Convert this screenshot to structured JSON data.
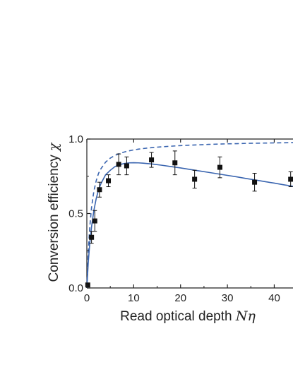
{
  "chart_data": {
    "type": "scatter",
    "xlabel": "Read optical depth ",
    "xlabel_var": "Nη",
    "ylabel": "Conversion efficiency ",
    "ylabel_var": "χ",
    "xlim": [
      0,
      44
    ],
    "ylim": [
      0,
      1.0
    ],
    "x_ticks": [
      0,
      10,
      20,
      30,
      40
    ],
    "x_tick_labels": [
      "0",
      "10",
      "20",
      "30",
      "40"
    ],
    "y_ticks": [
      0,
      0.5,
      1.0
    ],
    "y_tick_labels": [
      "0.0",
      "0.5",
      "1.0"
    ],
    "grid": false,
    "legend": "none",
    "colors": {
      "curve": "#3a65b0",
      "points": "#111111",
      "axis": "#222222"
    },
    "series": [
      {
        "kind": "points-with-error-bars",
        "x": [
          0.2,
          1.0,
          1.7,
          2.7,
          4.6,
          6.8,
          8.5,
          13.8,
          18.8,
          23.0,
          28.4,
          35.8,
          43.5
        ],
        "y": [
          0.02,
          0.34,
          0.45,
          0.66,
          0.72,
          0.83,
          0.82,
          0.86,
          0.84,
          0.73,
          0.81,
          0.71,
          0.73
        ],
        "err": [
          0.0,
          0.04,
          0.07,
          0.05,
          0.04,
          0.07,
          0.06,
          0.05,
          0.08,
          0.06,
          0.07,
          0.06,
          0.05
        ]
      },
      {
        "kind": "solid-curve",
        "x": [
          0,
          0.3,
          0.6,
          1.0,
          1.5,
          2.0,
          2.5,
          3.0,
          4.0,
          5.0,
          6.0,
          7.0,
          8.0,
          9.0,
          10.0,
          11.0,
          12.0,
          14.0,
          16.0,
          18.0,
          20.0,
          22.0,
          24.0,
          26.0,
          28.0,
          30.0,
          32.0,
          34.0,
          36.0,
          38.0,
          40.0,
          42.0,
          44.0
        ],
        "y": [
          0.0,
          0.17,
          0.29,
          0.41,
          0.52,
          0.6,
          0.66,
          0.7,
          0.76,
          0.79,
          0.815,
          0.828,
          0.836,
          0.84,
          0.841,
          0.84,
          0.838,
          0.832,
          0.824,
          0.815,
          0.806,
          0.796,
          0.786,
          0.776,
          0.766,
          0.756,
          0.746,
          0.735,
          0.725,
          0.714,
          0.704,
          0.693,
          0.683
        ]
      },
      {
        "kind": "dashed-curve",
        "x": [
          0,
          0.3,
          0.6,
          1.0,
          1.5,
          2.0,
          2.5,
          3.0,
          4.0,
          5.0,
          6.0,
          7.0,
          8.0,
          9.0,
          10.0,
          11.0,
          12.0,
          14.0,
          16.0,
          18.0,
          20.0,
          22.0,
          24.0,
          26.0,
          28.0,
          30.0,
          32.0,
          34.0,
          36.0,
          38.0,
          40.0,
          42.0,
          44.0
        ],
        "y": [
          0.0,
          0.24,
          0.4,
          0.54,
          0.65,
          0.72,
          0.77,
          0.8,
          0.845,
          0.872,
          0.89,
          0.903,
          0.913,
          0.921,
          0.927,
          0.932,
          0.936,
          0.943,
          0.948,
          0.952,
          0.956,
          0.959,
          0.961,
          0.964,
          0.966,
          0.968,
          0.969,
          0.971,
          0.972,
          0.973,
          0.974,
          0.975,
          0.976
        ]
      }
    ]
  }
}
